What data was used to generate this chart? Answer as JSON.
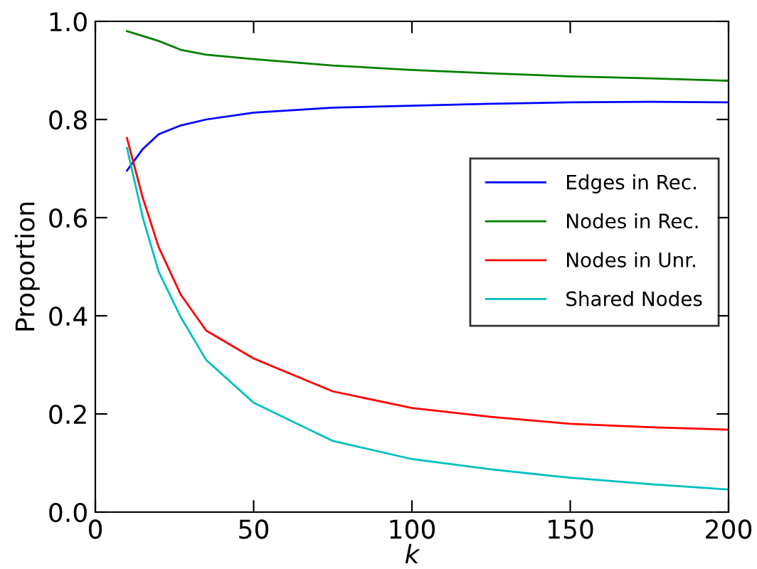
{
  "chart_data": {
    "type": "line",
    "xlabel": "k",
    "ylabel": "Proportion",
    "x": [
      10,
      15,
      20,
      27,
      35,
      50,
      75,
      100,
      125,
      150,
      175,
      200
    ],
    "series": [
      {
        "name": "Edges in Rec.",
        "color": "#0000ff",
        "values": [
          0.696,
          0.74,
          0.77,
          0.788,
          0.8,
          0.814,
          0.824,
          0.828,
          0.832,
          0.835,
          0.836,
          0.835
        ]
      },
      {
        "name": "Nodes in Rec.",
        "color": "#008000",
        "values": [
          0.98,
          0.97,
          0.96,
          0.942,
          0.932,
          0.923,
          0.91,
          0.901,
          0.894,
          0.888,
          0.884,
          0.879
        ]
      },
      {
        "name": "Nodes in Unr.",
        "color": "#ff0000",
        "values": [
          0.762,
          0.64,
          0.54,
          0.443,
          0.37,
          0.313,
          0.246,
          0.212,
          0.194,
          0.18,
          0.173,
          0.168
        ]
      },
      {
        "name": "Shared Nodes",
        "color": "#00bfbf",
        "values": [
          0.742,
          0.6,
          0.49,
          0.397,
          0.31,
          0.223,
          0.145,
          0.108,
          0.087,
          0.07,
          0.057,
          0.046
        ]
      }
    ],
    "xlim": [
      0,
      200
    ],
    "xticks": [
      0,
      50,
      100,
      150,
      200
    ],
    "ylim": [
      0.0,
      1.0
    ],
    "yticks": [
      {
        "value": 0,
        "label": "0.0"
      },
      {
        "value": 0.2,
        "label": "0.2"
      },
      {
        "value": 0.4,
        "label": "0.4"
      },
      {
        "value": 0.6,
        "label": "0.6"
      },
      {
        "value": 0.8,
        "label": "0.8"
      },
      {
        "value": 1.0,
        "label": "1.0"
      }
    ],
    "grid": false,
    "legend": "right",
    "marker": "none",
    "line_style": "solid"
  }
}
